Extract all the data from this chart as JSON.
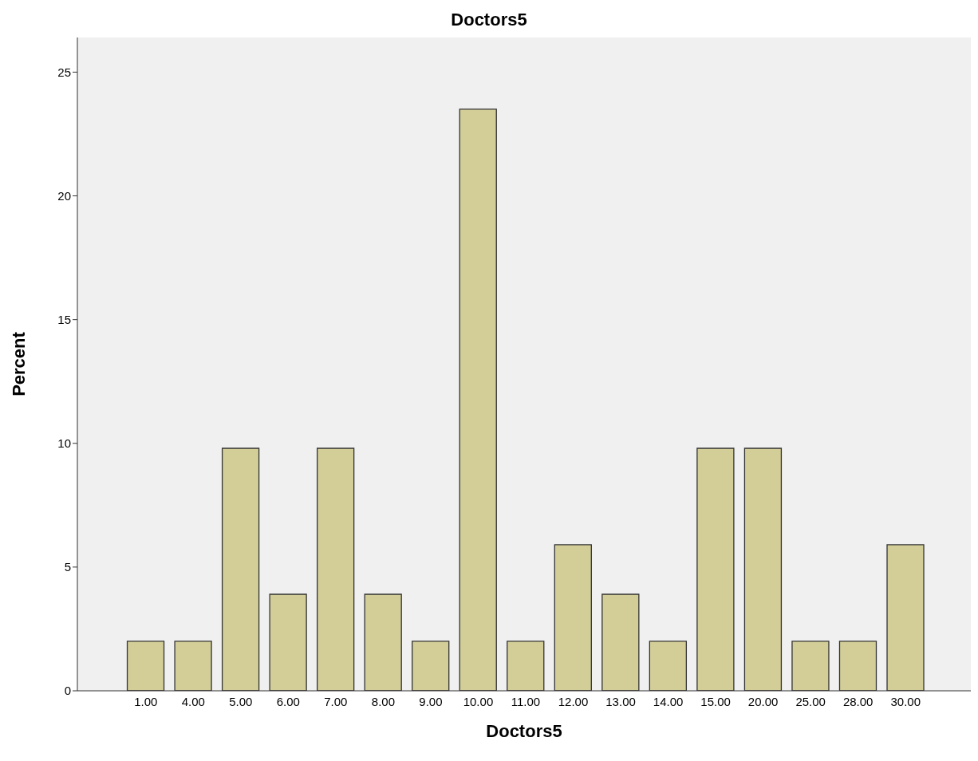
{
  "chart_data": {
    "type": "bar",
    "title": "Doctors5",
    "xlabel": "Doctors5",
    "ylabel": "Percent",
    "categories": [
      "1.00",
      "4.00",
      "5.00",
      "6.00",
      "7.00",
      "8.00",
      "9.00",
      "10.00",
      "11.00",
      "12.00",
      "13.00",
      "14.00",
      "15.00",
      "20.00",
      "25.00",
      "28.00",
      "30.00"
    ],
    "values": [
      2.0,
      2.0,
      9.8,
      3.9,
      9.8,
      3.9,
      2.0,
      23.5,
      2.0,
      5.9,
      3.9,
      2.0,
      9.8,
      9.8,
      2.0,
      2.0,
      5.9
    ],
    "color": "#d3ce97",
    "ylim": [
      0,
      26.4
    ],
    "yticks": [
      0,
      5,
      10,
      15,
      20,
      25
    ],
    "grid": false
  }
}
